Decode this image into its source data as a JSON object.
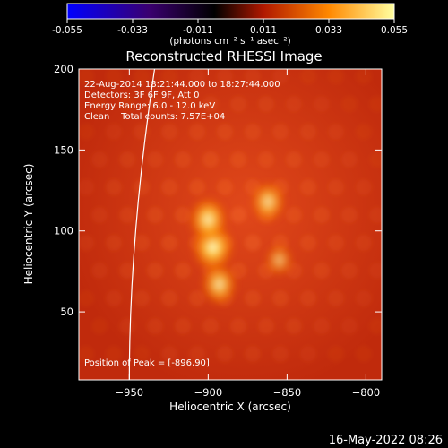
{
  "chart_data": {
    "type": "heatmap",
    "title": "Reconstructed RHESSI Image",
    "xlabel": "Heliocentric X (arcsec)",
    "ylabel": "Heliocentric Y (arcsec)",
    "xlim": [
      -982,
      -790
    ],
    "ylim": [
      8,
      200
    ],
    "x_ticks": [
      -950,
      -900,
      -850,
      -800
    ],
    "y_ticks": [
      50,
      100,
      150,
      200
    ],
    "colorbar": {
      "ticks": [
        "-0.055",
        "-0.033",
        "-0.011",
        "0.011",
        "0.033",
        "0.055"
      ],
      "range": [
        -0.055,
        0.055
      ],
      "unit_label": "(photons cm⁻² s⁻¹ asec⁻²)",
      "colors": [
        "#0000ff",
        "#3a0070",
        "#000000",
        "#b01800",
        "#ff8800",
        "#ffffa0"
      ]
    },
    "annotations": [
      "22-Aug-2014 18:21:44.000 to 18:27:44.000",
      "Detectors: 3F 6F 9F, Att 0",
      "Energy Range: 6.0 - 12.0 keV",
      "Clean    Total counts: 7.57E+04"
    ],
    "peak_label": "Position of Peak = [-896,90]",
    "peak": [
      -896,
      90
    ],
    "sources": [
      {
        "x": -897,
        "y": 90,
        "level": 1.0
      },
      {
        "x": -900,
        "y": 107,
        "level": 0.85
      },
      {
        "x": -893,
        "y": 67,
        "level": 0.72
      },
      {
        "x": -862,
        "y": 118,
        "level": 0.68
      },
      {
        "x": -855,
        "y": 82,
        "level": 0.35
      }
    ],
    "limb_arc": {
      "color": "#ffffff",
      "points": [
        [
          -934,
          200
        ],
        [
          -946,
          100
        ],
        [
          -950,
          8
        ]
      ]
    }
  },
  "footer": {
    "date": "16-May-2022 08:26"
  }
}
